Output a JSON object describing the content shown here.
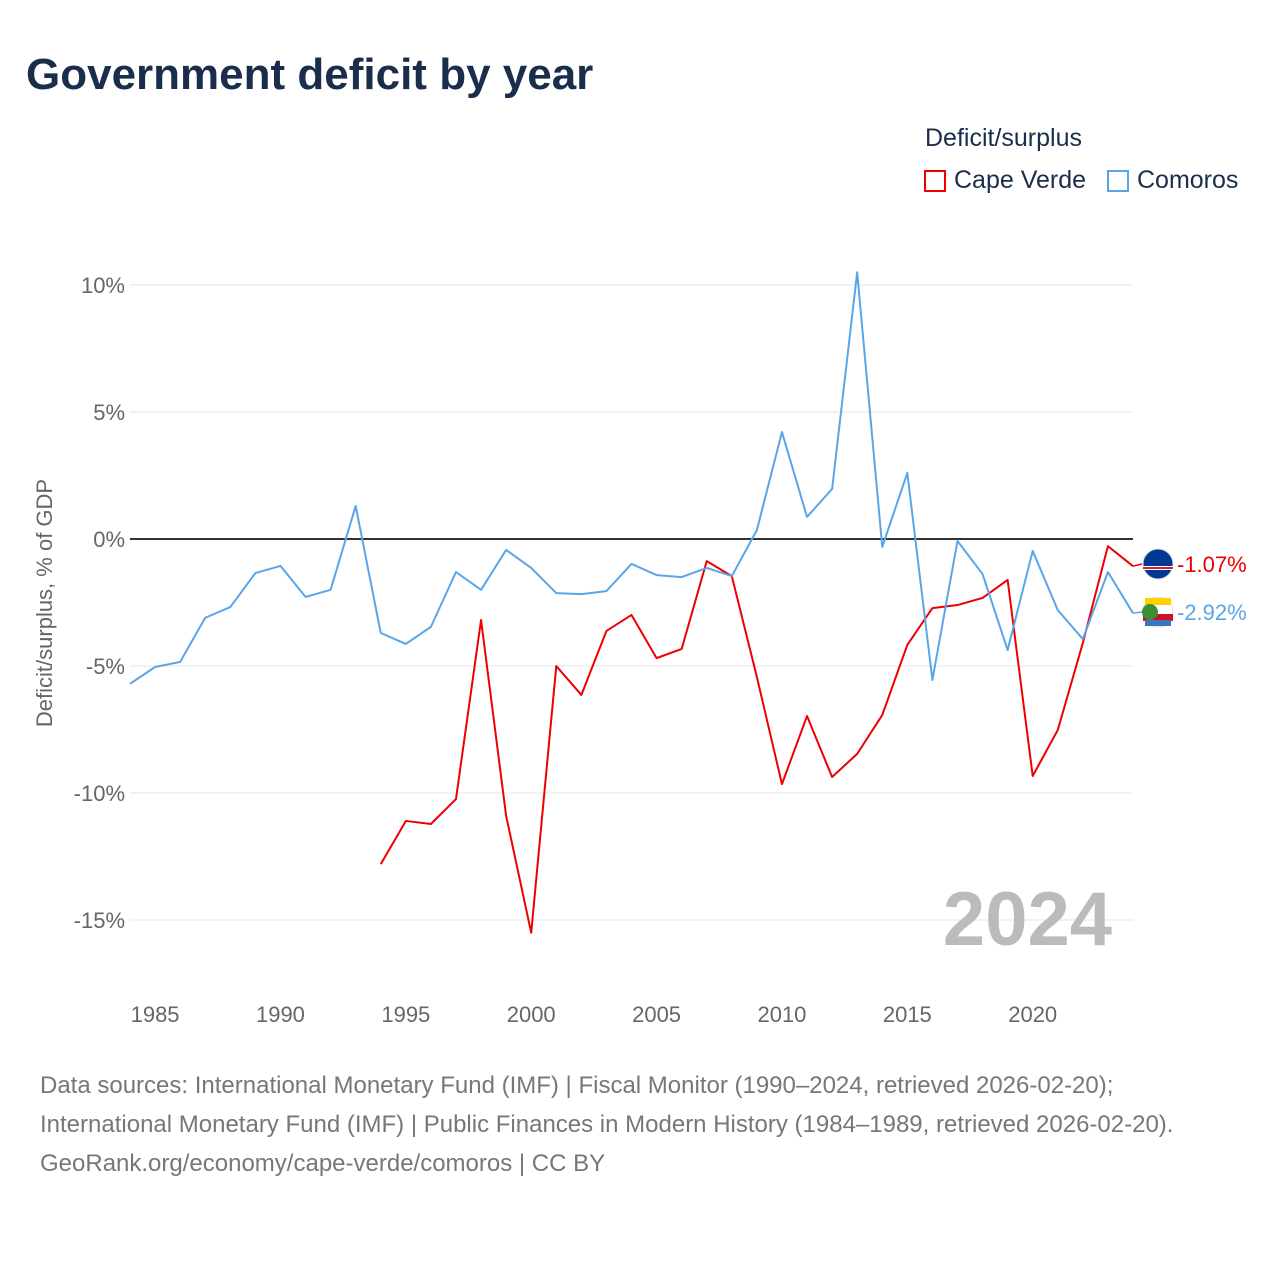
{
  "title": "Government deficit by year",
  "legend": {
    "title": "Deficit/surplus"
  },
  "sources": {
    "line1": "Data sources: International Monetary Fund (IMF) | Fiscal Monitor (1990–2024, retrieved 2026-02-20); International Monetary Fund (IMF) | Public Finances in Modern History (1984–1989, retrieved 2026-02-20).",
    "line2": "GeoRank.org/economy/cape-verde/comoros | CC BY"
  },
  "chart_data": {
    "type": "line",
    "title": "Government deficit by year",
    "xlabel": "",
    "ylabel": "Deficit/surplus, % of GDP",
    "ylim": [
      -17,
      11
    ],
    "xlim": [
      1984,
      2024
    ],
    "yticks": [
      10,
      5,
      0,
      -5,
      -10,
      -15
    ],
    "ytick_labels": [
      "10%",
      "5%",
      "0%",
      "-5%",
      "-10%",
      "-15%"
    ],
    "xticks": [
      1985,
      1990,
      1995,
      2000,
      2005,
      2010,
      2015,
      2020
    ],
    "xtick_labels": [
      "1985",
      "1990",
      "1995",
      "2000",
      "2005",
      "2010",
      "2015",
      "2020"
    ],
    "year_label": "2024",
    "grid": true,
    "legend_position": "top-right",
    "series": [
      {
        "name": "Cape Verde",
        "color": "#ee0000",
        "end_label": "-1.07%",
        "x": [
          1994,
          1995,
          1996,
          1997,
          1998,
          1999,
          2000,
          2001,
          2002,
          2003,
          2004,
          2005,
          2006,
          2007,
          2008,
          2009,
          2010,
          2011,
          2012,
          2013,
          2014,
          2015,
          2016,
          2017,
          2018,
          2019,
          2020,
          2021,
          2022,
          2023,
          2024
        ],
        "values": [
          -12.8,
          -11.1,
          -11.22,
          -10.24,
          -3.19,
          -10.9,
          -15.5,
          -5.0,
          -6.14,
          -3.62,
          -2.99,
          -4.69,
          -4.33,
          -0.87,
          -1.46,
          -5.43,
          -9.65,
          -6.97,
          -9.37,
          -8.46,
          -6.93,
          -4.17,
          -2.72,
          -2.6,
          -2.32,
          -1.61,
          -9.33,
          -7.52,
          -4.09,
          -0.28,
          -1.07
        ]
      },
      {
        "name": "Comoros",
        "color": "#5aa5e8",
        "end_label": "-2.92%",
        "x": [
          1984,
          1985,
          1986,
          1987,
          1988,
          1989,
          1990,
          1991,
          1992,
          1993,
          1994,
          1995,
          1996,
          1997,
          1998,
          1999,
          2000,
          2001,
          2002,
          2003,
          2004,
          2005,
          2006,
          2007,
          2008,
          2009,
          2010,
          2011,
          2012,
          2013,
          2014,
          2015,
          2016,
          2017,
          2018,
          2019,
          2020,
          2021,
          2022,
          2023,
          2024
        ],
        "values": [
          -5.7,
          -5.04,
          -4.84,
          -3.1,
          -2.68,
          -1.34,
          -1.06,
          -2.28,
          -2.0,
          1.3,
          -3.7,
          -4.13,
          -3.46,
          -1.3,
          -2.0,
          -0.43,
          -1.14,
          -2.13,
          -2.17,
          -2.05,
          -0.98,
          -1.42,
          -1.5,
          -1.14,
          -1.46,
          0.35,
          4.21,
          0.87,
          1.97,
          10.5,
          -0.31,
          2.6,
          -5.55,
          -0.08,
          -1.38,
          -4.37,
          -0.47,
          -2.8,
          -3.94,
          -1.3,
          -2.92
        ]
      }
    ]
  }
}
